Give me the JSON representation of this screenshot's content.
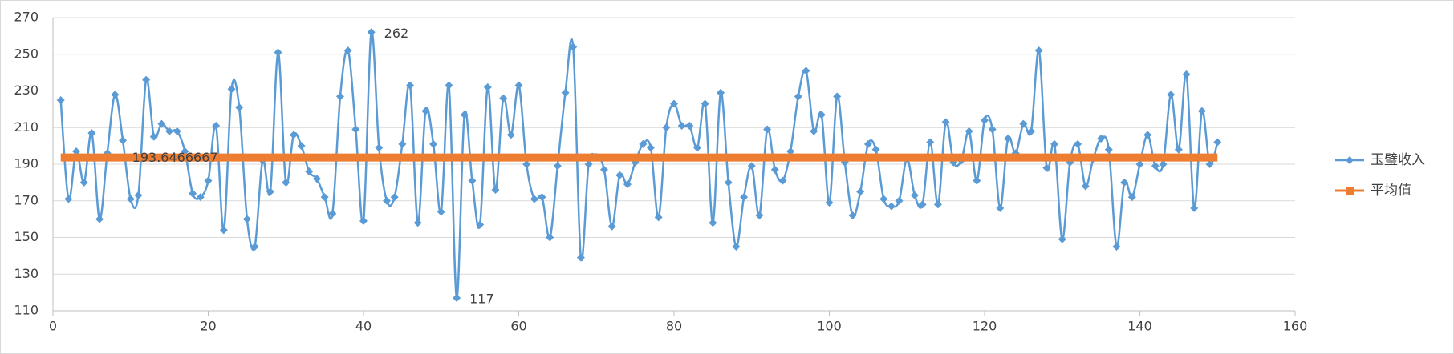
{
  "chart_data": {
    "type": "line",
    "smooth": true,
    "grid": true,
    "legend": "right",
    "xlim": [
      0,
      160
    ],
    "xticks": [
      0,
      20,
      40,
      60,
      80,
      100,
      120,
      140,
      160
    ],
    "ylim": [
      110,
      270
    ],
    "yticks": [
      110,
      130,
      150,
      170,
      190,
      210,
      230,
      250,
      270
    ],
    "series": [
      {
        "name": "玉璧收入",
        "color": "#5b9bd5",
        "marker": "diamond",
        "x": [
          1,
          2,
          3,
          4,
          5,
          6,
          7,
          8,
          9,
          10,
          11,
          12,
          13,
          14,
          15,
          16,
          17,
          18,
          19,
          20,
          21,
          22,
          23,
          24,
          25,
          26,
          27,
          28,
          29,
          30,
          31,
          32,
          33,
          34,
          35,
          36,
          37,
          38,
          39,
          40,
          41,
          42,
          43,
          44,
          45,
          46,
          47,
          48,
          49,
          50,
          51,
          52,
          53,
          54,
          55,
          56,
          57,
          58,
          59,
          60,
          61,
          62,
          63,
          64,
          65,
          66,
          67,
          68,
          69,
          70,
          71,
          72,
          73,
          74,
          75,
          76,
          77,
          78,
          79,
          80,
          81,
          82,
          83,
          84,
          85,
          86,
          87,
          88,
          89,
          90,
          91,
          92,
          93,
          94,
          95,
          96,
          97,
          98,
          99,
          100,
          101,
          102,
          103,
          104,
          105,
          106,
          107,
          108,
          109,
          110,
          111,
          112,
          113,
          114,
          115,
          116,
          117,
          118,
          119,
          120,
          121,
          122,
          123,
          124,
          125,
          126,
          127,
          128,
          129,
          130,
          131,
          132,
          133,
          134,
          135,
          136,
          137,
          138,
          139,
          140,
          141,
          142,
          143,
          144,
          145,
          146,
          147,
          148,
          149,
          150
        ],
        "values": [
          225,
          171,
          197,
          180,
          207,
          160,
          196,
          228,
          203,
          171,
          173,
          236,
          205,
          212,
          208,
          208,
          197,
          174,
          172,
          181,
          211,
          154,
          231,
          221,
          160,
          145,
          192,
          175,
          251,
          180,
          206,
          200,
          186,
          182,
          172,
          163,
          227,
          252,
          209,
          159,
          262,
          199,
          170,
          172,
          201,
          233,
          158,
          219,
          201,
          164,
          233,
          117,
          217,
          181,
          157,
          232,
          176,
          226,
          206,
          233,
          190,
          171,
          172,
          150,
          189,
          229,
          254,
          139,
          190,
          194,
          187,
          156,
          184,
          179,
          191,
          201,
          199,
          161,
          210,
          223,
          211,
          211,
          199,
          223,
          158,
          229,
          180,
          145,
          172,
          189,
          162,
          209,
          187,
          181,
          197,
          227,
          241,
          208,
          217,
          169,
          227,
          191,
          162,
          175,
          201,
          198,
          171,
          167,
          170,
          193,
          173,
          168,
          202,
          168,
          213,
          191,
          192,
          208,
          181,
          214,
          209,
          166,
          204,
          196,
          212,
          208,
          252,
          188,
          201,
          149,
          191,
          201,
          178,
          193,
          204,
          198,
          145,
          180,
          172,
          190,
          206,
          189,
          190,
          228,
          198,
          239,
          166,
          219,
          190,
          202
        ]
      },
      {
        "name": "平均值",
        "color": "#ed7d31",
        "marker": "square",
        "x": [
          1,
          150
        ],
        "values": [
          193.6466667,
          193.6466667
        ]
      }
    ]
  }
}
